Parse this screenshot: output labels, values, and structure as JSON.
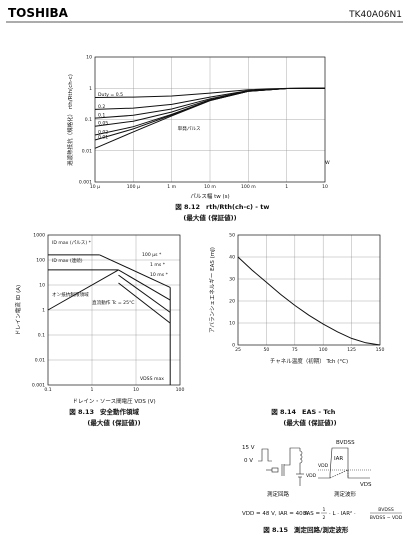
{
  "header": {
    "brand": "TOSHIBA",
    "part": "TK40A06N1"
  },
  "figures": [
    {
      "type": "line",
      "caption": "図 8.12",
      "caption_formula": "rth/Rth(ch-c) - tw",
      "note": "(最大値 (保証値))",
      "x_label": "パルス幅 tw (s)",
      "y_label": "過渡熱抵抗（規格化） rth/Rth(ch-c)",
      "log_x": true,
      "log_y": true,
      "xlim": [
        1e-05,
        10
      ],
      "xticks": [
        {
          "value": 1e-05,
          "label": "10 µ"
        },
        {
          "value": 0.0001,
          "label": "100 µ"
        },
        {
          "value": 0.001,
          "label": "1 m"
        },
        {
          "value": 0.01,
          "label": "10 m"
        },
        {
          "value": 0.1,
          "label": "100 m"
        },
        1,
        10
      ],
      "ylim": [
        0.001,
        10
      ],
      "yticks": [
        0.001,
        0.01,
        0.1,
        1,
        10
      ],
      "x": [
        1e-05,
        0.0001,
        0.001,
        0.01,
        0.1,
        1,
        10
      ],
      "series": [
        {
          "name": "Duty = 0.5",
          "values": [
            0.506,
            0.52,
            0.565,
            0.7,
            0.9,
            0.99,
            1
          ]
        },
        {
          "name": "0.2",
          "values": [
            0.21,
            0.232,
            0.304,
            0.52,
            0.84,
            0.984,
            1
          ]
        },
        {
          "name": "0.1",
          "values": [
            0.111,
            0.136,
            0.217,
            0.46,
            0.82,
            0.982,
            1
          ]
        },
        {
          "name": "0.05",
          "values": [
            0.061,
            0.088,
            0.174,
            0.43,
            0.81,
            0.981,
            1
          ]
        },
        {
          "name": "0.02",
          "values": [
            0.032,
            0.059,
            0.147,
            0.41,
            0.8,
            0.98,
            1
          ]
        },
        {
          "name": "0.01",
          "values": [
            0.022,
            0.05,
            0.139,
            0.41,
            0.8,
            0.98,
            1
          ]
        },
        {
          "name": "単発パルス",
          "values": [
            0.012,
            0.04,
            0.13,
            0.4,
            0.8,
            0.98,
            1
          ]
        }
      ],
      "inset": {
        "pdm": "PDM",
        "t": "t",
        "T": "T",
        "duty": "Duty = t/T",
        "rth": "Rth(ch-c) = 4.96°C/W"
      }
    },
    {
      "type": "line",
      "caption": "図 8.13",
      "caption_text": "安全動作領域",
      "note": "(最大値 (保証値))",
      "x_label": "ドレイン・ソース間電圧 VDS (V)",
      "y_label": "ドレイン電流 ID (A)",
      "log_x": true,
      "log_y": true,
      "xlim": [
        0.1,
        100
      ],
      "xticks": [
        0.1,
        1,
        10,
        100
      ],
      "ylim": [
        0.001,
        1000
      ],
      "yticks": [
        0.001,
        0.01,
        0.1,
        1,
        10,
        100,
        1000
      ],
      "series": [
        {
          "name": "ID max (パルス) *",
          "x": [
            0.1,
            1.5
          ],
          "values": [
            160,
            160
          ]
        },
        {
          "name": "ID max (連続)",
          "x": [
            0.1,
            4
          ],
          "values": [
            40,
            40
          ]
        },
        {
          "name": "100 µs *",
          "x": [
            1.5,
            60
          ],
          "values": [
            160,
            8
          ]
        },
        {
          "name": "1 ms *",
          "x": [
            4,
            60
          ],
          "values": [
            40,
            2.5
          ]
        },
        {
          "name": "10 ms *",
          "x": [
            4,
            60
          ],
          "values": [
            25,
            0.8
          ]
        },
        {
          "name": "直流動作 Tc = 25°C",
          "x": [
            4,
            60
          ],
          "values": [
            12,
            0.3
          ]
        },
        {
          "name": "オン抵抗制限領域",
          "x": [
            0.1,
            4
          ],
          "values": [
            1,
            40
          ]
        },
        {
          "name": "VDSS max",
          "x": [
            60,
            60
          ],
          "values": [
            0.001,
            8
          ]
        }
      ],
      "pulse_note": "* 単発パルス Tc = 25°C",
      "derating": [
        "安全動作領域は温度によって",
        "ディレーティングして使",
        "用する必要があります。"
      ]
    },
    {
      "type": "line",
      "caption": "図 8.14",
      "caption_formula": "EAS - Tch",
      "note": "(最大値 (保証値))",
      "x_label": "チャネル温度（初期） Tch (°C)",
      "y_label": "アバランシェエネルギー EAS (mJ)",
      "log_x": false,
      "log_y": false,
      "xlim": [
        25,
        150
      ],
      "xticks": [
        25,
        50,
        75,
        100,
        125,
        150
      ],
      "ylim": [
        0,
        50
      ],
      "yticks": [
        0,
        10,
        20,
        30,
        40,
        50
      ],
      "x": [
        25,
        37.5,
        50,
        62.5,
        75,
        87.5,
        100,
        112.5,
        125,
        137.5,
        150
      ],
      "values": [
        40,
        34,
        28.5,
        23,
        18,
        13.5,
        9.5,
        6,
        3,
        1,
        0
      ]
    },
    {
      "type": "diagram",
      "caption": "図 8.15",
      "caption_text": "測定回路/測定波形",
      "labels": {
        "v15": "15 V",
        "v0": "0 V",
        "circuit": "測定回路",
        "waveform": "測定波形",
        "bvdss": "BVDSS",
        "iar": "IAR",
        "vdd": "VDD",
        "vds": "VDS"
      },
      "conditions": "VDD = 48 V, IAR = 40 A",
      "eq_lhs": "EAS =",
      "eq_num": "1",
      "eq_den": "2",
      "eq_mid": "· L · IAR² ·",
      "eq_frac_num": "BVDSS",
      "eq_frac_den": "BVDSS − VDD"
    }
  ]
}
